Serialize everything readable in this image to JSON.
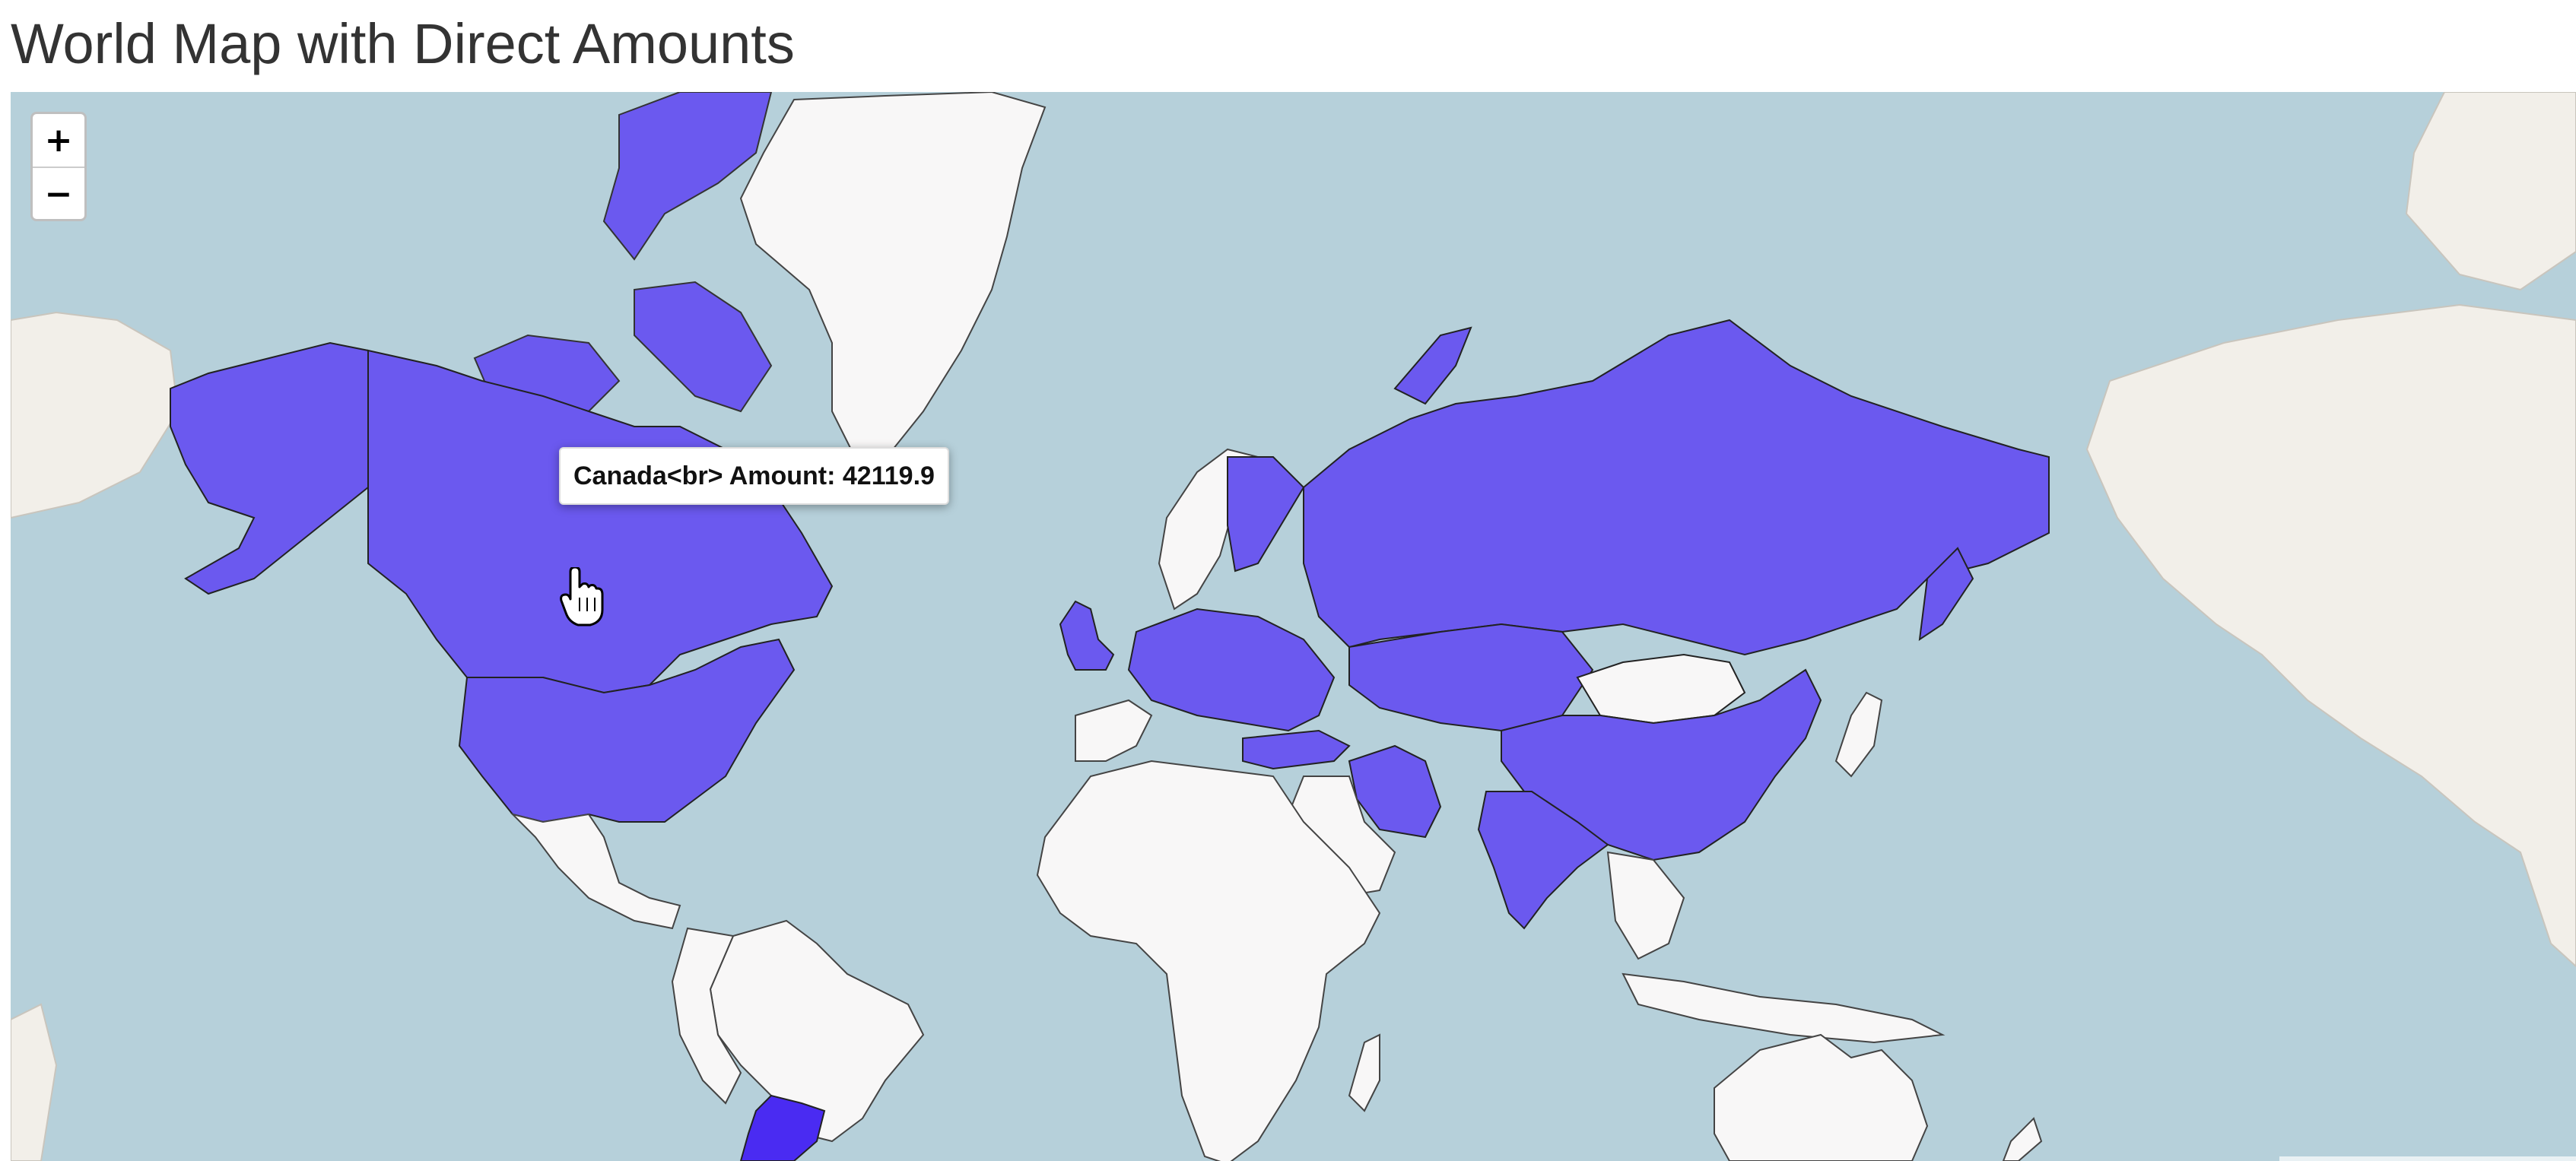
{
  "page": {
    "title": "World Map with Direct Amounts"
  },
  "zoom": {
    "in_label": "+",
    "out_label": "−"
  },
  "tooltip": {
    "country": "Canada",
    "amount": 42119.9,
    "text": "Canada<br> Amount: 42119.9"
  },
  "map": {
    "colors": {
      "ocean": "#b6d0da",
      "highlight": "#6b59ef",
      "argentina": "#4a2bf2",
      "unhighlighted": "#f8f7f7",
      "basemap_land": "#f2efe9",
      "border": "#222222"
    },
    "highlighted_countries": [
      "United States",
      "Canada",
      "Russia",
      "China",
      "India",
      "Iran",
      "Argentina",
      "United Kingdom",
      "Ireland",
      "Finland",
      "Turkey",
      "Kazakhstan"
    ],
    "tooltip_target": "Canada"
  }
}
